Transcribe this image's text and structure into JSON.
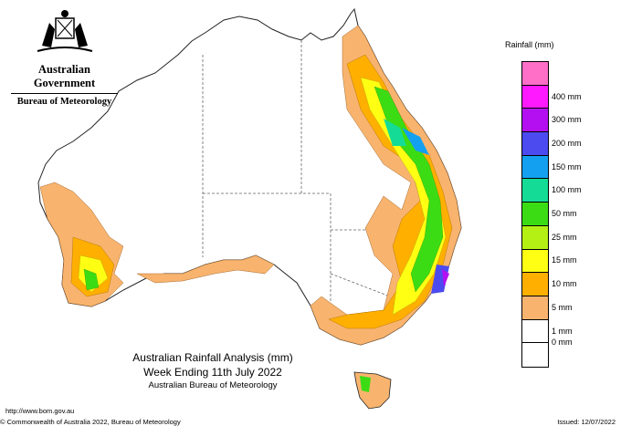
{
  "header": {
    "government": "Australian Government",
    "agency": "Bureau of Meteorology"
  },
  "map_title": {
    "line1": "Australian Rainfall Analysis (mm)",
    "line2": "Week Ending 11th July 2022",
    "line3": "Australian Bureau of Meteorology"
  },
  "footer": {
    "url": "http://www.bom.gov.au",
    "copyright": "© Commonwealth of Australia 2022, Bureau of Meteorology",
    "issued": "Issued: 12/07/2022"
  },
  "legend": {
    "title": "Rainfall (mm)",
    "bins": [
      {
        "label": "",
        "color": "#ff6ec7"
      },
      {
        "label": "400 mm",
        "color": "#ff19ff"
      },
      {
        "label": "300 mm",
        "color": "#b30ff0"
      },
      {
        "label": "200 mm",
        "color": "#4b4bf0"
      },
      {
        "label": "150 mm",
        "color": "#14a0f0"
      },
      {
        "label": "100 mm",
        "color": "#14dc96"
      },
      {
        "label": "50 mm",
        "color": "#3cdc14"
      },
      {
        "label": "25 mm",
        "color": "#b4f014"
      },
      {
        "label": "15 mm",
        "color": "#ffff14"
      },
      {
        "label": "10 mm",
        "color": "#ffaf00"
      },
      {
        "label": "5 mm",
        "color": "#f8b46e"
      },
      {
        "label": "1 mm",
        "color": "#ffffff"
      },
      {
        "label": "0 mm",
        "color": "#ffffff"
      }
    ]
  }
}
